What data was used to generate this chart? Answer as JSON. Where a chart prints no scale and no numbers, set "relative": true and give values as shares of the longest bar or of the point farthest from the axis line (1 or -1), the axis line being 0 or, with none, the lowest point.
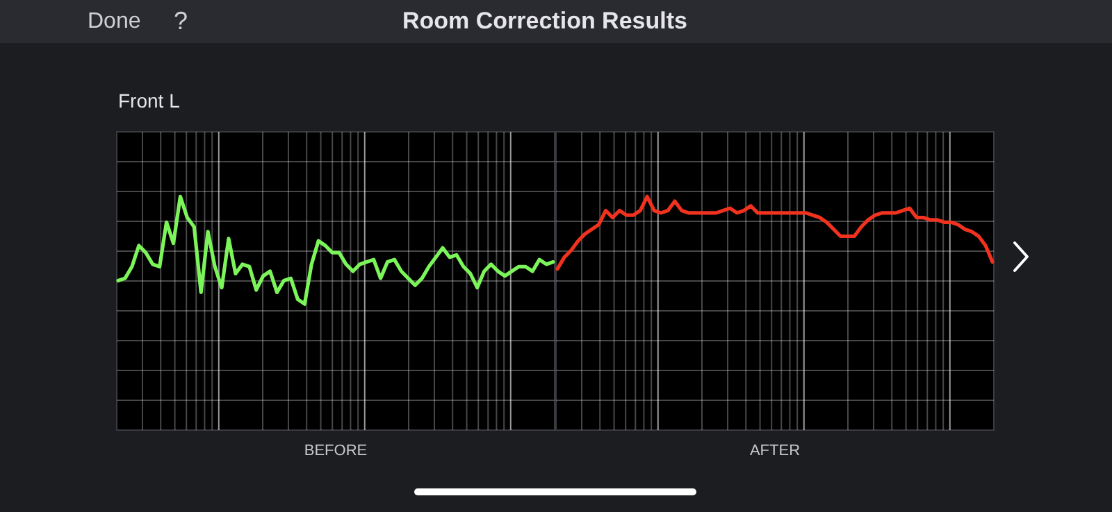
{
  "chart_data": [
    {
      "type": "line",
      "title": "Room Correction Results",
      "subtitle": "Front L",
      "annotations": [
        "Done",
        "?"
      ],
      "xlabel": "BEFORE",
      "relative": true,
      "grid": true,
      "categories": [
        null,
        null,
        null,
        null,
        null,
        null,
        null,
        null,
        null,
        null,
        null,
        null,
        null,
        null,
        null,
        null,
        null,
        null,
        null,
        null,
        null,
        null,
        null,
        null,
        null,
        null,
        null,
        null,
        null,
        null,
        null,
        null,
        null,
        null,
        null,
        null,
        null,
        null,
        null,
        null,
        null,
        null,
        null,
        null,
        null,
        null,
        null,
        null,
        null,
        null,
        null,
        null,
        null,
        null,
        null,
        null,
        null,
        null,
        null,
        null,
        null,
        null,
        null,
        null
      ],
      "series": [
        {
          "color": "#7cf55a",
          "values": [
            0.64,
            0.65,
            0.7,
            0.79,
            0.76,
            0.71,
            0.7,
            0.89,
            0.8,
            1,
            0.91,
            0.87,
            0.59,
            0.85,
            0.7,
            0.61,
            0.82,
            0.67,
            0.71,
            0.7,
            0.6,
            0.66,
            0.68,
            0.59,
            0.64,
            0.65,
            0.56,
            0.54,
            0.71,
            0.81,
            0.79,
            0.76,
            0.76,
            0.71,
            0.68,
            0.71,
            0.72,
            0.73,
            0.65,
            0.72,
            0.73,
            0.68,
            0.65,
            0.62,
            0.65,
            0.7,
            0.74,
            0.78,
            0.74,
            0.75,
            0.7,
            0.67,
            0.61,
            0.68,
            0.71,
            0.68,
            0.66,
            0.68,
            0.7,
            0.7,
            0.68,
            0.73,
            0.71,
            0.72
          ]
        }
      ]
    },
    {
      "type": "line",
      "xlabel": "AFTER",
      "relative": true,
      "grid": true,
      "categories": [
        null,
        null,
        null,
        null,
        null,
        null,
        null,
        null,
        null,
        null,
        null,
        null,
        null,
        null,
        null,
        null,
        null,
        null,
        null,
        null,
        null,
        null,
        null,
        null,
        null,
        null,
        null,
        null,
        null,
        null,
        null,
        null,
        null,
        null,
        null,
        null,
        null,
        null,
        null,
        null,
        null,
        null,
        null,
        null,
        null,
        null,
        null,
        null,
        null,
        null,
        null,
        null,
        null,
        null,
        null,
        null,
        null,
        null,
        null,
        null,
        null,
        null,
        null,
        null
      ],
      "series": [
        {
          "color": "#f0321e",
          "values": [
            0.69,
            0.74,
            0.77,
            0.81,
            0.84,
            0.86,
            0.88,
            0.94,
            0.91,
            0.94,
            0.92,
            0.92,
            0.94,
            1,
            0.94,
            0.93,
            0.94,
            0.98,
            0.94,
            0.93,
            0.93,
            0.93,
            0.93,
            0.93,
            0.94,
            0.95,
            0.93,
            0.94,
            0.96,
            0.93,
            0.93,
            0.93,
            0.93,
            0.93,
            0.93,
            0.93,
            0.93,
            0.92,
            0.91,
            0.89,
            0.86,
            0.83,
            0.83,
            0.83,
            0.87,
            0.9,
            0.92,
            0.93,
            0.93,
            0.93,
            0.94,
            0.95,
            0.91,
            0.91,
            0.9,
            0.9,
            0.89,
            0.89,
            0.88,
            0.86,
            0.85,
            0.83,
            0.79,
            0.72
          ]
        }
      ]
    }
  ]
}
